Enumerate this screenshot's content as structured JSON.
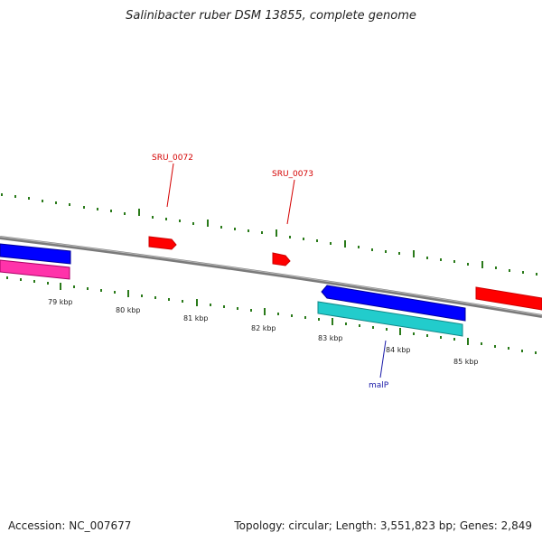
{
  "header": {
    "title": "Salinibacter ruber DSM 13855, complete genome"
  },
  "footer": {
    "accession": "Accession: NC_007677",
    "stats": "Topology: circular; Length: 3,551,823 bp; Genes: 2,849"
  },
  "scale_labels": [
    "79 kbp",
    "80 kbp",
    "81 kbp",
    "82 kbp",
    "83 kbp",
    "84 kbp",
    "85 kbp"
  ],
  "gene_labels": {
    "sru0072": "SRU_0072",
    "sru0073": "SRU_0073",
    "malp": "malP"
  },
  "colors": {
    "backbone": "#7a7a7a",
    "tick": "#2a7a1a",
    "forward_cds": "#ff0000",
    "reverse_cds": "#0000ff",
    "pink_feature": "#ff33aa",
    "cyan_feature": "#22cccc"
  }
}
